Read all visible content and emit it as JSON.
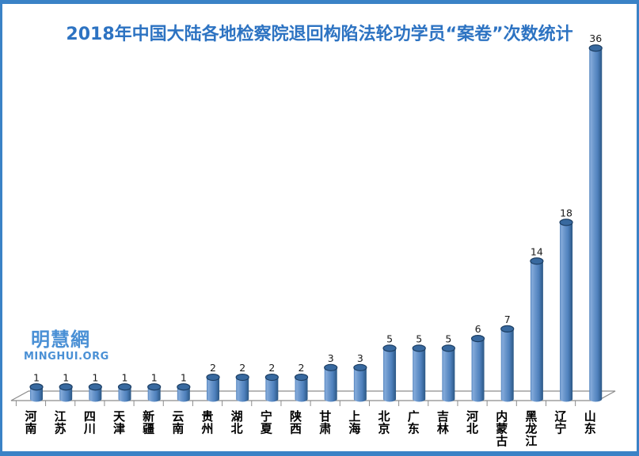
{
  "chart_data": {
    "type": "bar",
    "style": "3d-cylinder",
    "title": "2018年中国大陆各地检察院退回构陷法轮功学员“案卷”次数统计",
    "categories": [
      "河南",
      "江苏",
      "四川",
      "天津",
      "新疆",
      "云南",
      "贵州",
      "湖北",
      "宁夏",
      "陕西",
      "甘肃",
      "上海",
      "北京",
      "广东",
      "吉林",
      "河北",
      "内蒙古",
      "黑龙江",
      "辽宁",
      "山东"
    ],
    "values": [
      1,
      1,
      1,
      1,
      1,
      1,
      2,
      2,
      2,
      2,
      3,
      3,
      5,
      5,
      5,
      6,
      7,
      14,
      18,
      36
    ],
    "xlabel": "",
    "ylabel": "",
    "ylim": [
      0,
      36
    ],
    "grid": false,
    "legend": "none",
    "value_labels_shown": true,
    "category_label_orientation": "vertical"
  },
  "watermark": {
    "chinese": "明慧網",
    "url": "MINGHUI.ORG"
  },
  "colors": {
    "title": "#2d73c2",
    "frame_border": "#3a82c6",
    "background": "#ffffff",
    "bar_fill": "#4f81bd",
    "bar_highlight": "#85abda",
    "bar_mid": "#6b97cc",
    "bar_shadow": "#2b5784",
    "bar_cap_fill": "#38699f",
    "bar_cap_rim": "#1c3e63",
    "axis": "#8c8c8c",
    "value_label": "#1a1a1a",
    "category_label": "#000000",
    "watermark": "#4a90d5"
  }
}
